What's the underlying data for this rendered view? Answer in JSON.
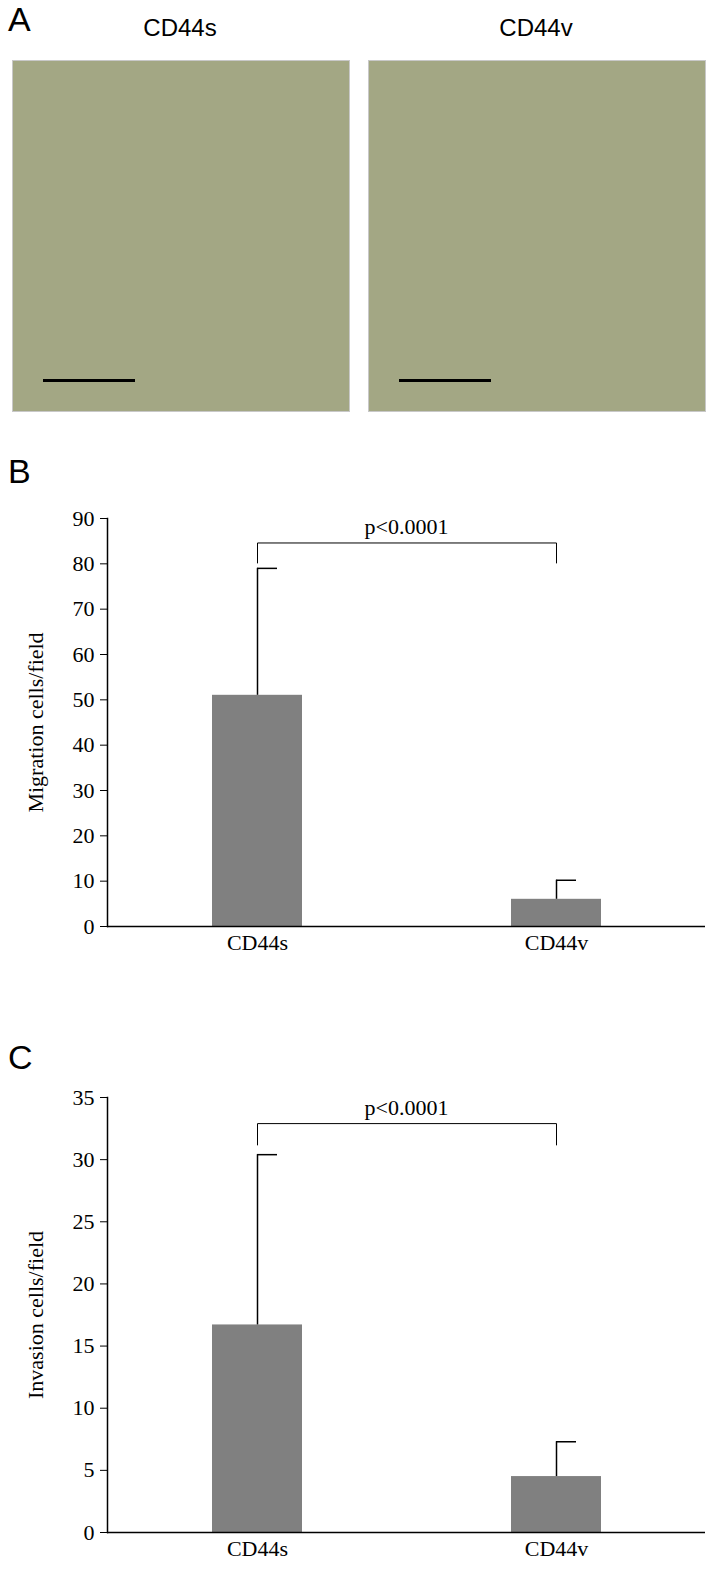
{
  "images": {
    "panel": "A",
    "titles": [
      "CD44s",
      "CD44v"
    ]
  },
  "chart_data": [
    {
      "panel": "B",
      "type": "bar",
      "categories": [
        "CD44s",
        "CD44v"
      ],
      "values": [
        51,
        6
      ],
      "error": [
        28,
        4.2
      ],
      "color": "#808080",
      "y_label": "Migration cells/field",
      "ylim": [
        0,
        90
      ],
      "yticks": [
        0,
        10,
        20,
        30,
        40,
        50,
        60,
        70,
        80,
        90
      ],
      "annotations": [
        "p<0.0001"
      ]
    },
    {
      "panel": "C",
      "type": "bar",
      "categories": [
        "CD44s",
        "CD44v"
      ],
      "values": [
        16.7,
        4.5
      ],
      "error": [
        13.7,
        2.8
      ],
      "color": "#808080",
      "y_label": "Invasion cells/field",
      "ylim": [
        0,
        35
      ],
      "yticks": [
        0,
        5,
        10,
        15,
        20,
        25,
        30,
        35
      ],
      "annotations": [
        "p<0.0001"
      ]
    }
  ]
}
